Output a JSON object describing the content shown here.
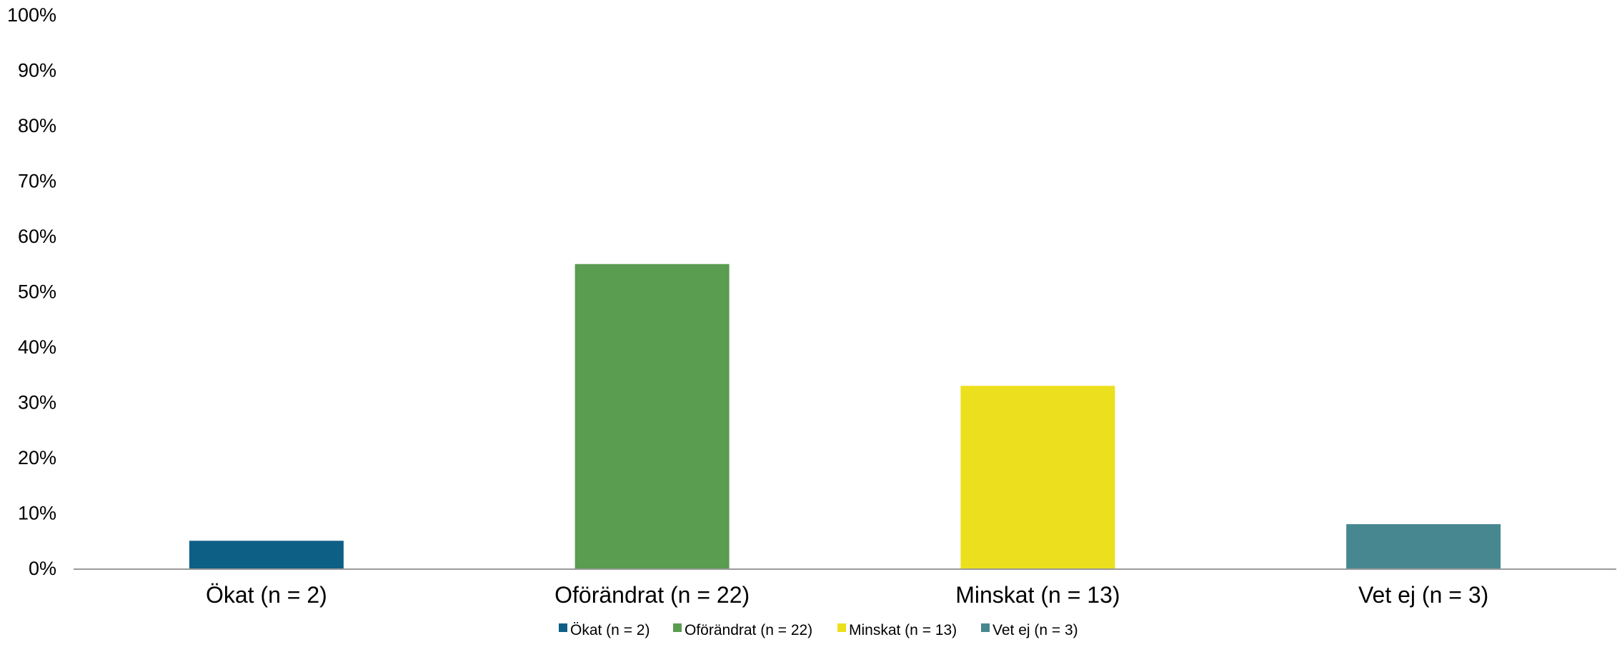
{
  "chart_data": {
    "type": "bar",
    "categories": [
      "Ökat (n = 2)",
      "Oförändrat (n = 22)",
      "Minskat (n = 13)",
      "Vet ej (n = 3)"
    ],
    "values": [
      5,
      55,
      33,
      8
    ],
    "colors": [
      "#0e5f86",
      "#5a9c50",
      "#ece01e",
      "#478890"
    ],
    "unit": "%",
    "ylim": [
      0,
      100
    ],
    "yticks": [
      "0%",
      "10%",
      "20%",
      "30%",
      "40%",
      "50%",
      "60%",
      "70%",
      "80%",
      "90%",
      "100%"
    ],
    "title": "",
    "xlabel": "",
    "ylabel": "",
    "grid": false,
    "legend": {
      "position": "bottom",
      "entries": [
        "Ökat (n = 2)",
        "Oförändrat (n = 22)",
        "Minskat (n = 13)",
        "Vet ej (n = 3)"
      ]
    }
  }
}
